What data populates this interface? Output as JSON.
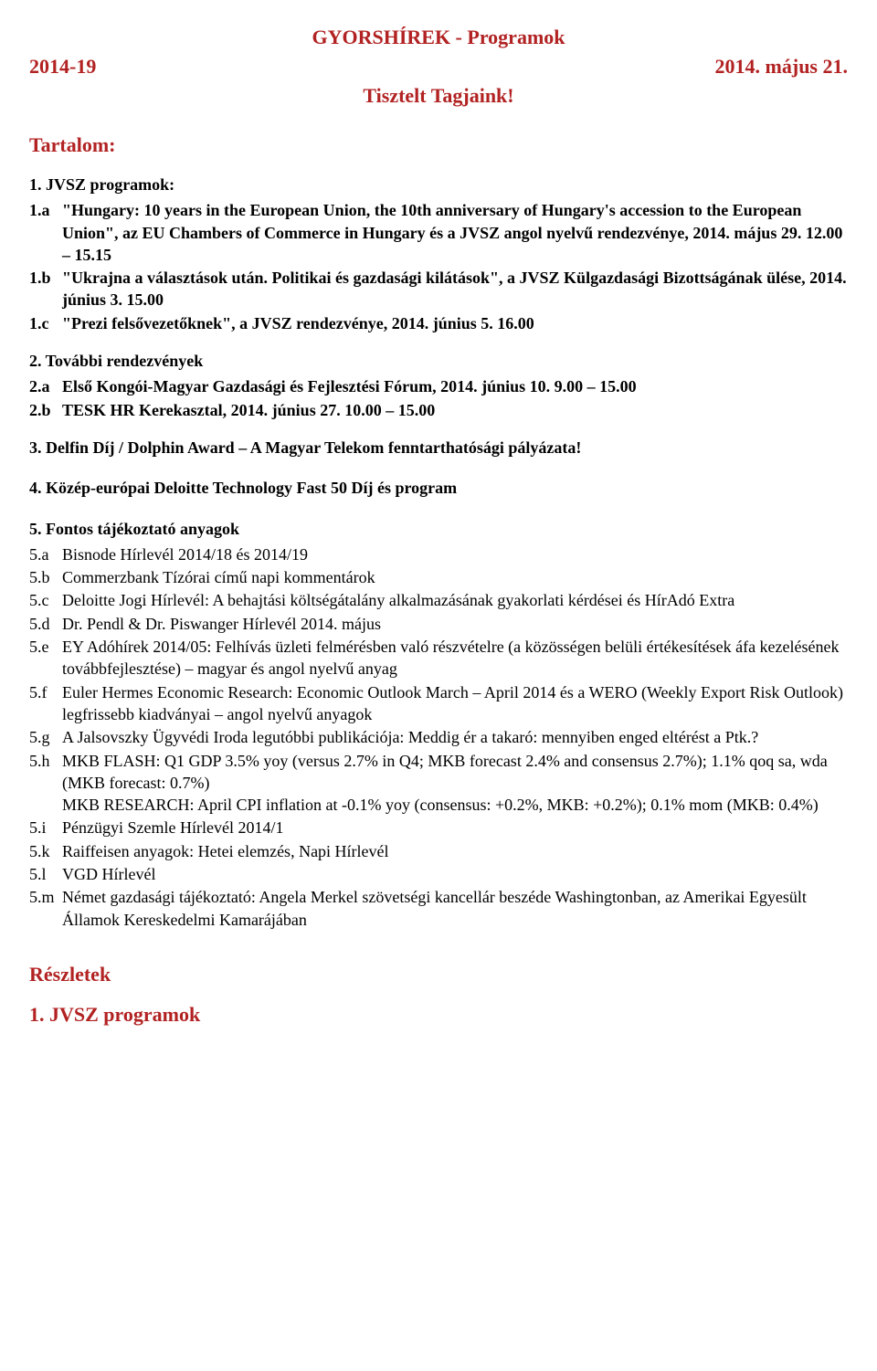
{
  "header": {
    "title_center": "GYORSHÍREK - Programok",
    "left": "2014-19",
    "right": "2014. május 21.",
    "salutation": "Tisztelt Tagjaink!"
  },
  "toc_heading": "Tartalom:",
  "section1": {
    "heading": "1. JVSZ programok:",
    "items": [
      {
        "idx": "1.a",
        "text": "\"Hungary: 10 years in the European Union, the 10th anniversary of Hungary's accession to the European Union\", az EU Chambers of Commerce in Hungary és a JVSZ angol nyelvű rendezvénye, 2014. május 29. 12.00 – 15.15",
        "bold": true
      },
      {
        "idx": "1.b",
        "text": "\"Ukrajna a választások után. Politikai és gazdasági kilátások\", a JVSZ Külgazdasági Bizottságának ülése, 2014. június 3. 15.00",
        "bold": true
      },
      {
        "idx": "1.c",
        "text": "\"Prezi felsővezetőknek\", a JVSZ rendezvénye, 2014. június 5. 16.00",
        "bold": true
      }
    ]
  },
  "section2": {
    "heading": "2. További rendezvények",
    "items": [
      {
        "idx": "2.a",
        "text": "Első Kongói-Magyar Gazdasági és Fejlesztési Fórum, 2014. június 10. 9.00 – 15.00",
        "bold": true
      },
      {
        "idx": "2.b",
        "text": "TESK HR Kerekasztal, 2014. június 27. 10.00 – 15.00",
        "bold": true
      }
    ]
  },
  "section3": {
    "heading": "3. Delfin Díj / Dolphin Award – A Magyar Telekom fenntarthatósági pályázata!"
  },
  "section4": {
    "heading": "4. Közép-európai Deloitte Technology Fast 50 Díj és program"
  },
  "section5": {
    "heading": "5. Fontos tájékoztató anyagok",
    "items": [
      {
        "idx": "5.a",
        "text": "Bisnode Hírlevél 2014/18 és 2014/19",
        "bold": false
      },
      {
        "idx": "5.b",
        "text": "Commerzbank Tízórai című napi kommentárok",
        "bold": false
      },
      {
        "idx": "5.c",
        "text": "Deloitte Jogi Hírlevél: A behajtási költségátalány alkalmazásának gyakorlati kérdései és HírAdó Extra",
        "bold": false
      },
      {
        "idx": "5.d",
        "text": "Dr. Pendl & Dr. Piswanger Hírlevél 2014. május",
        "bold": false
      },
      {
        "idx": "5.e",
        "text": "EY Adóhírek 2014/05: Felhívás üzleti felmérésben való részvételre (a közösségen belüli értékesítések áfa kezelésének továbbfejlesztése) – magyar és angol nyelvű anyag",
        "bold": false
      },
      {
        "idx": "5.f",
        "text": "Euler Hermes Economic Research: Economic Outlook March – April 2014 és a WERO (Weekly Export Risk Outlook) legfrissebb kiadványai – angol nyelvű anyagok",
        "bold": false
      },
      {
        "idx": "5.g",
        "text": "A Jalsovszky Ügyvédi Iroda legutóbbi publikációja: Meddig ér a takaró: mennyiben enged eltérést a Ptk.?",
        "bold": false
      },
      {
        "idx": "5.h",
        "text": "MKB FLASH: Q1 GDP 3.5% yoy (versus 2.7% in Q4; MKB forecast 2.4% and consensus 2.7%); 1.1% qoq sa, wda (MKB forecast: 0.7%)\nMKB RESEARCH: April CPI inflation at -0.1% yoy (consensus: +0.2%, MKB: +0.2%); 0.1% mom (MKB: 0.4%)",
        "bold": false
      },
      {
        "idx": "5.i",
        "text": "Pénzügyi Szemle Hírlevél 2014/1",
        "bold": false
      },
      {
        "idx": "5.k",
        "text": "Raiffeisen anyagok: Hetei elemzés, Napi Hírlevél",
        "bold": false
      },
      {
        "idx": "5.l",
        "text": "VGD Hírlevél",
        "bold": false
      },
      {
        "idx": "5.m",
        "text": "Német gazdasági tájékoztató: Angela Merkel szövetségi kancellár beszéde Washingtonban, az Amerikai Egyesült Államok Kereskedelmi Kamarájában",
        "bold": false
      }
    ]
  },
  "details_heading": "Részletek",
  "footer_heading": "1. JVSZ programok",
  "colors": {
    "accent": "#b22222",
    "text": "#000000",
    "background": "#ffffff"
  },
  "typography": {
    "font_family": "Times New Roman",
    "heading_size_pt": 16,
    "body_size_pt": 13
  }
}
